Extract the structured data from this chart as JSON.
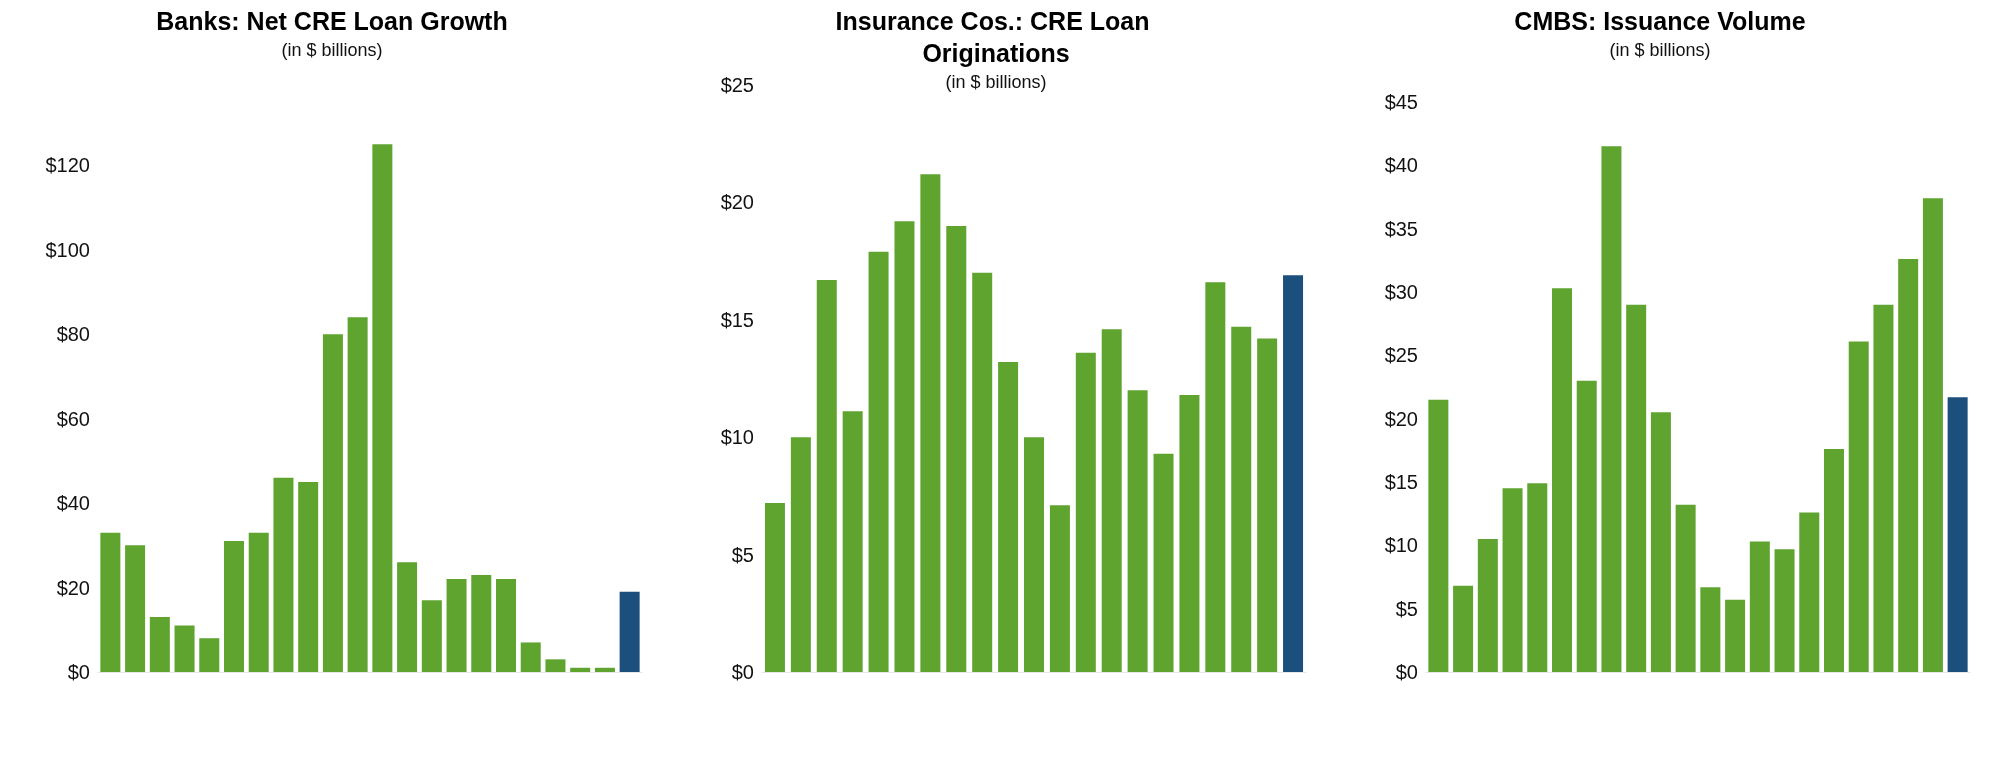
{
  "chart_data": [
    {
      "type": "bar",
      "title": "Banks: Net CRE Loan Growth",
      "subtitle": "(in $ billions)",
      "categories": [
        null,
        null,
        null,
        null,
        null,
        null,
        null,
        null,
        null,
        null,
        null,
        null,
        null,
        null,
        null,
        null,
        null,
        null,
        null,
        null,
        null,
        null
      ],
      "values": [
        33,
        30,
        13,
        11,
        8,
        31,
        33,
        46,
        45,
        80,
        84,
        125,
        26,
        17,
        22,
        23,
        22,
        7,
        3,
        1,
        1,
        19
      ],
      "colors": [
        "#5ea42f",
        "#5ea42f",
        "#5ea42f",
        "#5ea42f",
        "#5ea42f",
        "#5ea42f",
        "#5ea42f",
        "#5ea42f",
        "#5ea42f",
        "#5ea42f",
        "#5ea42f",
        "#5ea42f",
        "#5ea42f",
        "#5ea42f",
        "#5ea42f",
        "#5ea42f",
        "#5ea42f",
        "#5ea42f",
        "#5ea42f",
        "#5ea42f",
        "#5ea42f",
        "#1b4f7c"
      ],
      "ylim": [
        0,
        126
      ],
      "yticks": [
        {
          "value": 0,
          "label": "$0"
        },
        {
          "value": 20,
          "label": "$20"
        },
        {
          "value": 40,
          "label": "$40"
        },
        {
          "value": 60,
          "label": "$60"
        },
        {
          "value": 80,
          "label": "$80"
        },
        {
          "value": 100,
          "label": "$100"
        },
        {
          "value": 120,
          "label": "$120"
        }
      ],
      "tick_labels": "y"
    },
    {
      "type": "bar",
      "title": "Insurance Cos.: CRE Loan Originations",
      "subtitle": "(in $ billions)",
      "categories": [
        null,
        null,
        null,
        null,
        null,
        null,
        null,
        null,
        null,
        null,
        null,
        null,
        null,
        null,
        null,
        null,
        null,
        null,
        null,
        null,
        null
      ],
      "values": [
        7.2,
        10.0,
        16.7,
        11.1,
        17.9,
        19.2,
        21.2,
        19.0,
        17.0,
        13.2,
        10.0,
        7.1,
        13.6,
        14.6,
        12.0,
        9.3,
        11.8,
        16.6,
        14.7,
        14.2,
        16.9
      ],
      "colors": [
        "#5ea42f",
        "#5ea42f",
        "#5ea42f",
        "#5ea42f",
        "#5ea42f",
        "#5ea42f",
        "#5ea42f",
        "#5ea42f",
        "#5ea42f",
        "#5ea42f",
        "#5ea42f",
        "#5ea42f",
        "#5ea42f",
        "#5ea42f",
        "#5ea42f",
        "#5ea42f",
        "#5ea42f",
        "#5ea42f",
        "#5ea42f",
        "#5ea42f",
        "#1b4f7c"
      ],
      "ylim": [
        0,
        25
      ],
      "yticks": [
        {
          "value": 0,
          "label": "$0"
        },
        {
          "value": 5,
          "label": "$5"
        },
        {
          "value": 10,
          "label": "$10"
        },
        {
          "value": 15,
          "label": "$15"
        },
        {
          "value": 20,
          "label": "$20"
        },
        {
          "value": 25,
          "label": "$25"
        }
      ],
      "tick_labels": "y"
    },
    {
      "type": "bar",
      "title": "CMBS: Issuance Volume",
      "subtitle": "(in $ billions)",
      "categories": [
        null,
        null,
        null,
        null,
        null,
        null,
        null,
        null,
        null,
        null,
        null,
        null,
        null,
        null,
        null,
        null,
        null,
        null,
        null,
        null,
        null,
        null
      ],
      "values": [
        21.5,
        6.8,
        10.5,
        14.5,
        14.9,
        30.3,
        23.0,
        41.5,
        29.0,
        20.5,
        13.2,
        6.7,
        5.7,
        10.3,
        9.7,
        12.6,
        17.6,
        26.1,
        29.0,
        32.6,
        37.4,
        21.7
      ],
      "colors": [
        "#5ea42f",
        "#5ea42f",
        "#5ea42f",
        "#5ea42f",
        "#5ea42f",
        "#5ea42f",
        "#5ea42f",
        "#5ea42f",
        "#5ea42f",
        "#5ea42f",
        "#5ea42f",
        "#5ea42f",
        "#5ea42f",
        "#5ea42f",
        "#5ea42f",
        "#5ea42f",
        "#5ea42f",
        "#5ea42f",
        "#5ea42f",
        "#5ea42f",
        "#5ea42f",
        "#1b4f7c"
      ],
      "ylim": [
        0,
        45
      ],
      "yticks": [
        {
          "value": 0,
          "label": "$0"
        },
        {
          "value": 5,
          "label": "$5"
        },
        {
          "value": 10,
          "label": "$10"
        },
        {
          "value": 15,
          "label": "$15"
        },
        {
          "value": 20,
          "label": "$20"
        },
        {
          "value": 25,
          "label": "$25"
        },
        {
          "value": 30,
          "label": "$30"
        },
        {
          "value": 35,
          "label": "$35"
        },
        {
          "value": 40,
          "label": "$40"
        },
        {
          "value": 45,
          "label": "$45"
        }
      ],
      "tick_labels": "y"
    }
  ]
}
